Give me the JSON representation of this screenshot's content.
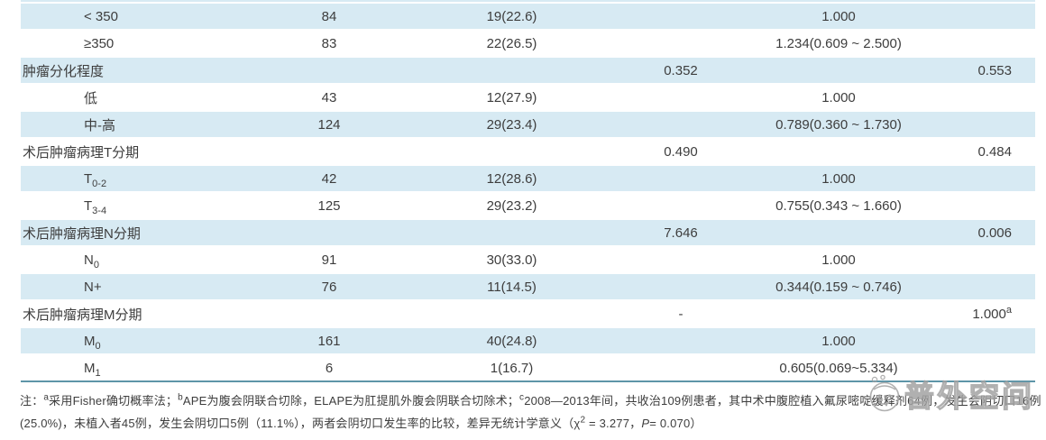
{
  "colors": {
    "row_shade": "#d7eaf3",
    "rule": "#5e95a8",
    "text": "#3d3d3d",
    "watermark": "#a3a3a3"
  },
  "table": {
    "rows": [
      {
        "label": "< 350",
        "sub": "",
        "group": false,
        "shaded": true,
        "n": "84",
        "events": "19(22.6)",
        "stat": "",
        "or": "1.000",
        "p": "",
        "p_sup": ""
      },
      {
        "label": "≥350",
        "sub": "",
        "group": false,
        "shaded": false,
        "n": "83",
        "events": "22(26.5)",
        "stat": "",
        "or": "1.234(0.609 ~ 2.500)",
        "p": "",
        "p_sup": ""
      },
      {
        "label": "肿瘤分化程度",
        "sub": "",
        "group": true,
        "shaded": true,
        "n": "",
        "events": "",
        "stat": "0.352",
        "or": "",
        "p": "0.553",
        "p_sup": ""
      },
      {
        "label": "低",
        "sub": "",
        "group": false,
        "shaded": false,
        "n": "43",
        "events": "12(27.9)",
        "stat": "",
        "or": "1.000",
        "p": "",
        "p_sup": ""
      },
      {
        "label": "中-高",
        "sub": "",
        "group": false,
        "shaded": true,
        "n": "124",
        "events": "29(23.4)",
        "stat": "",
        "or": "0.789(0.360 ~ 1.730)",
        "p": "",
        "p_sup": ""
      },
      {
        "label": "术后肿瘤病理T分期",
        "sub": "",
        "group": true,
        "shaded": false,
        "n": "",
        "events": "",
        "stat": "0.490",
        "or": "",
        "p": "0.484",
        "p_sup": ""
      },
      {
        "label": "T",
        "sub": "0-2",
        "group": false,
        "shaded": true,
        "n": "42",
        "events": "12(28.6)",
        "stat": "",
        "or": "1.000",
        "p": "",
        "p_sup": ""
      },
      {
        "label": "T",
        "sub": "3-4",
        "group": false,
        "shaded": false,
        "n": "125",
        "events": "29(23.2)",
        "stat": "",
        "or": "0.755(0.343 ~ 1.660)",
        "p": "",
        "p_sup": ""
      },
      {
        "label": "术后肿瘤病理N分期",
        "sub": "",
        "group": true,
        "shaded": true,
        "n": "",
        "events": "",
        "stat": "7.646",
        "or": "",
        "p": "0.006",
        "p_sup": ""
      },
      {
        "label": "N",
        "sub": "0",
        "group": false,
        "shaded": false,
        "n": "91",
        "events": "30(33.0)",
        "stat": "",
        "or": "1.000",
        "p": "",
        "p_sup": ""
      },
      {
        "label": "N+",
        "sub": "",
        "group": false,
        "shaded": true,
        "n": "76",
        "events": "11(14.5)",
        "stat": "",
        "or": "0.344(0.159 ~ 0.746)",
        "p": "",
        "p_sup": ""
      },
      {
        "label": "术后肿瘤病理M分期",
        "sub": "",
        "group": true,
        "shaded": false,
        "n": "",
        "events": "",
        "stat": "-",
        "or": "",
        "p": "1.000",
        "p_sup": "a"
      },
      {
        "label": "M",
        "sub": "0",
        "group": false,
        "shaded": true,
        "n": "161",
        "events": "40(24.8)",
        "stat": "",
        "or": "1.000",
        "p": "",
        "p_sup": ""
      },
      {
        "label": "M",
        "sub": "1",
        "group": false,
        "shaded": false,
        "n": "6",
        "events": "1(16.7)",
        "stat": "",
        "or": "0.605(0.069~5.334)",
        "p": "",
        "p_sup": ""
      }
    ]
  },
  "footnote": {
    "line1": [
      {
        "t": "注："
      },
      {
        "t": "a",
        "sup": true
      },
      {
        "t": "采用Fisher确切概率法；"
      },
      {
        "t": "b",
        "sup": true
      },
      {
        "t": "APE为腹会阴联合切除，ELAPE为肛提肌外腹会阴联合切除术；"
      },
      {
        "t": "c",
        "sup": true
      },
      {
        "t": "2008—2013年间，共收治109例患者，其中术中腹腔植入氟尿嘧啶缓释剂64例，发生会阴切口16例"
      }
    ],
    "line2": [
      {
        "t": "(25.0%)，未植入者45例，发生会阴切口5例（11.1%），两者会阴切口发生率的比较，差异无统计学意义（χ"
      },
      {
        "t": "2",
        "sup": true
      },
      {
        "t": " = 3.277，"
      },
      {
        "t": "P",
        "italic": true
      },
      {
        "t": "= 0.070）"
      }
    ]
  },
  "watermark": {
    "text": "普外空间"
  }
}
